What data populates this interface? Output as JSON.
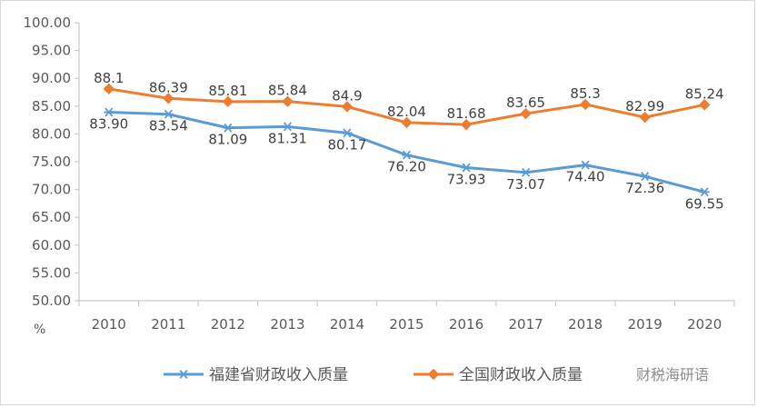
{
  "chart_data": {
    "type": "line",
    "categories": [
      "2010",
      "2011",
      "2012",
      "2013",
      "2014",
      "2015",
      "2016",
      "2017",
      "2018",
      "2019",
      "2020"
    ],
    "series": [
      {
        "name": "福建省财政收入质量",
        "values": [
          83.9,
          83.54,
          81.09,
          81.31,
          80.17,
          76.2,
          73.93,
          73.07,
          74.4,
          72.36,
          69.55
        ],
        "labels": [
          "83.90",
          "83.54",
          "81.09",
          "81.31",
          "80.17",
          "76.20",
          "73.93",
          "73.07",
          "74.40",
          "72.36",
          "69.55"
        ],
        "color": "#5b9bd5",
        "marker": "asterisk"
      },
      {
        "name": "全国财政收入质量",
        "values": [
          88.1,
          86.39,
          85.81,
          85.84,
          84.9,
          82.04,
          81.68,
          83.65,
          85.3,
          82.99,
          85.24
        ],
        "labels": [
          "88.1",
          "86.39",
          "85.81",
          "85.84",
          "84.9",
          "82.04",
          "81.68",
          "83.65",
          "85.3",
          "82.99",
          "85.24"
        ],
        "color": "#ed7d31",
        "marker": "diamond"
      }
    ],
    "y_ticks": [
      "100.00",
      "95.00",
      "90.00",
      "85.00",
      "80.00",
      "75.00",
      "70.00",
      "65.00",
      "60.00",
      "55.00",
      "50.00"
    ],
    "ylim": [
      50,
      100
    ],
    "unit_label": "%",
    "grid": false,
    "legend": "bottom"
  },
  "watermark": "财税海研语"
}
